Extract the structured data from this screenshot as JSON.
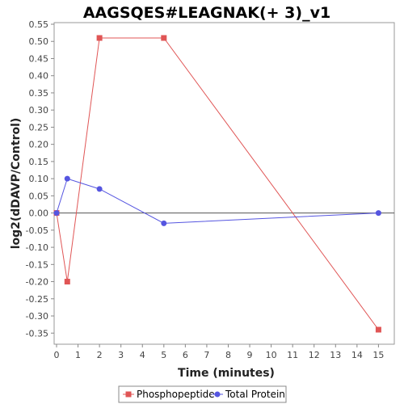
{
  "chart_data": {
    "type": "line",
    "title": "AAGSQES#LEAGNAK(+ 3)_v1",
    "xlabel": "Time (minutes)",
    "ylabel": "log2(dDAVP/Control)",
    "xlim": [
      0,
      15.7
    ],
    "ylim": [
      -0.38,
      0.55
    ],
    "x_ticks": [
      0,
      1,
      2,
      3,
      4,
      5,
      6,
      7,
      8,
      9,
      10,
      11,
      12,
      13,
      14,
      15
    ],
    "x_tick_labels": [
      "0",
      "1",
      "2",
      "3",
      "4",
      "5",
      "6",
      "7",
      "8",
      "9",
      "10",
      "11",
      "12",
      "13",
      "14",
      "15"
    ],
    "y_ticks": [
      0.55,
      0.5,
      0.45,
      0.4,
      0.35,
      0.3,
      0.25,
      0.2,
      0.15,
      0.1,
      0.05,
      0.0,
      -0.05,
      -0.1,
      -0.15,
      -0.2,
      -0.25,
      -0.3,
      -0.35
    ],
    "y_tick_labels": [
      "0.55",
      "0.50",
      "0.45",
      "0.40",
      "0.35",
      "0.30",
      "0.25",
      "0.20",
      "0.15",
      "0.10",
      "0.05",
      "0.00",
      "-0.05",
      "-0.10",
      "-0.15",
      "-0.20",
      "-0.25",
      "-0.30",
      "-0.35"
    ],
    "grid": false,
    "zero_line": true,
    "legend_position": "bottom",
    "series": [
      {
        "name": "Phosphopeptide",
        "color": "#e05555",
        "marker": "square",
        "x": [
          0,
          0.5,
          2,
          5,
          15
        ],
        "y": [
          0.0,
          -0.2,
          0.51,
          0.51,
          -0.34
        ]
      },
      {
        "name": "Total Protein",
        "color": "#5555e0",
        "marker": "circle",
        "x": [
          0,
          0.5,
          2,
          5,
          15
        ],
        "y": [
          0.0,
          0.1,
          0.07,
          -0.03,
          0.0
        ]
      }
    ]
  }
}
